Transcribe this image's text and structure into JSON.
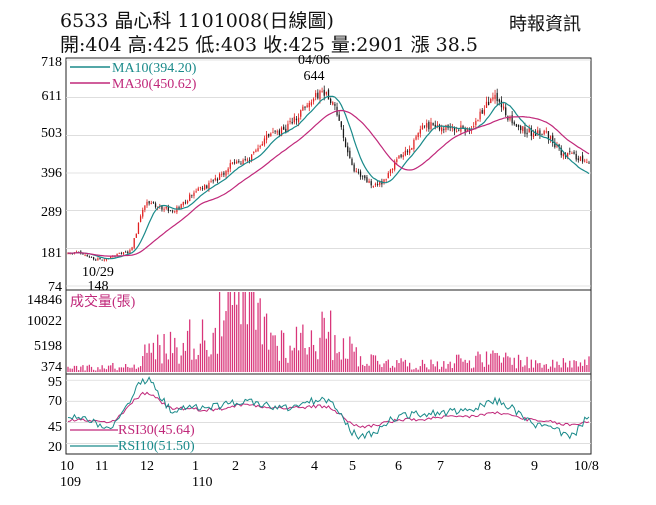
{
  "header": {
    "title": "6533 晶心科 1101008(日線圖)",
    "quote": "開:404 高:425 低:403 收:425 量:2901 漲 38.5",
    "source": "時報資訊"
  },
  "chart_data": [
    {
      "type": "candlestick",
      "title": "Price",
      "ylim": [
        74,
        718
      ],
      "yticks": [
        718,
        611,
        503,
        396,
        289,
        181,
        74
      ],
      "legend": [
        {
          "label": "MA10(394.20)",
          "color": "#1a8a8a"
        },
        {
          "label": "MA30(450.62)",
          "color": "#c0287a"
        }
      ],
      "annotations": [
        {
          "label": "04/06",
          "value": 644,
          "date": "04/06"
        },
        {
          "label": "10/29",
          "value": 148,
          "date": "10/29"
        }
      ],
      "colors": {
        "up": "#e02020",
        "down": "#1a1a1a",
        "ma10": "#1a8a8a",
        "ma30": "#c0287a"
      },
      "anchors": [
        {
          "date": "10/08",
          "close": 170
        },
        {
          "date": "10/29",
          "close": 150
        },
        {
          "date": "11/20",
          "close": 170
        },
        {
          "date": "12/03",
          "close": 310
        },
        {
          "date": "12/20",
          "close": 290
        },
        {
          "date": "01/10",
          "close": 360
        },
        {
          "date": "02/05",
          "close": 430
        },
        {
          "date": "03/05",
          "close": 510
        },
        {
          "date": "04/06",
          "close": 628
        },
        {
          "date": "05/03",
          "close": 390
        },
        {
          "date": "05/12",
          "close": 360
        },
        {
          "date": "06/01",
          "close": 450
        },
        {
          "date": "06/15",
          "close": 530
        },
        {
          "date": "07/15",
          "close": 520
        },
        {
          "date": "08/02",
          "close": 612
        },
        {
          "date": "08/18",
          "close": 520
        },
        {
          "date": "09/05",
          "close": 505
        },
        {
          "date": "09/20",
          "close": 450
        },
        {
          "date": "10/08",
          "close": 425
        }
      ],
      "ma10_end": 394.2,
      "ma30_end": 450.62
    },
    {
      "type": "bar",
      "title": "成交量(張)",
      "ylim": [
        0,
        14846
      ],
      "yticks": [
        14846,
        10022,
        5198,
        374
      ],
      "anchors": [
        {
          "date": "10/08",
          "value": 900
        },
        {
          "date": "11/20",
          "value": 1200
        },
        {
          "date": "12/10",
          "value": 5000
        },
        {
          "date": "01/10",
          "value": 7500
        },
        {
          "date": "02/05",
          "value": 14846
        },
        {
          "date": "03/10",
          "value": 6000
        },
        {
          "date": "04/06",
          "value": 8000
        },
        {
          "date": "05/10",
          "value": 2500
        },
        {
          "date": "06/15",
          "value": 1500
        },
        {
          "date": "07/10",
          "value": 2500
        },
        {
          "date": "08/05",
          "value": 2800
        },
        {
          "date": "09/10",
          "value": 1500
        },
        {
          "date": "10/08",
          "value": 2901
        }
      ]
    },
    {
      "type": "line",
      "title": "RSI",
      "ylim": [
        10,
        100
      ],
      "yticks": [
        95,
        70,
        45,
        20
      ],
      "series": [
        {
          "name": "RSI30",
          "label": "RSI30(45.64)",
          "end": 45.64,
          "color": "#c0287a"
        },
        {
          "name": "RSI10",
          "label": "RSI10(51.50)",
          "end": 51.5,
          "color": "#1a8a8a"
        }
      ],
      "anchors": [
        {
          "date": "10/08",
          "rsi30": 48,
          "rsi10": 52
        },
        {
          "date": "11/05",
          "rsi30": 45,
          "rsi10": 40
        },
        {
          "date": "12/03",
          "rsi30": 80,
          "rsi10": 95
        },
        {
          "date": "12/20",
          "rsi30": 62,
          "rsi10": 60
        },
        {
          "date": "01/15",
          "rsi30": 60,
          "rsi10": 64
        },
        {
          "date": "02/10",
          "rsi30": 66,
          "rsi10": 70
        },
        {
          "date": "03/10",
          "rsi30": 62,
          "rsi10": 62
        },
        {
          "date": "04/06",
          "rsi30": 64,
          "rsi10": 72
        },
        {
          "date": "05/03",
          "rsi30": 40,
          "rsi10": 28
        },
        {
          "date": "06/01",
          "rsi30": 48,
          "rsi10": 54
        },
        {
          "date": "07/15",
          "rsi30": 52,
          "rsi10": 58
        },
        {
          "date": "08/02",
          "rsi30": 56,
          "rsi10": 70
        },
        {
          "date": "09/05",
          "rsi30": 46,
          "rsi10": 40
        },
        {
          "date": "09/25",
          "rsi30": 42,
          "rsi10": 30
        },
        {
          "date": "10/08",
          "rsi30": 45.64,
          "rsi10": 51.5
        }
      ]
    }
  ],
  "x_axis": {
    "months": [
      "10",
      "11",
      "12",
      "1",
      "2",
      "3",
      "4",
      "5",
      "6",
      "7",
      "8",
      "9",
      "10/8"
    ],
    "years": [
      "109",
      "110"
    ]
  }
}
